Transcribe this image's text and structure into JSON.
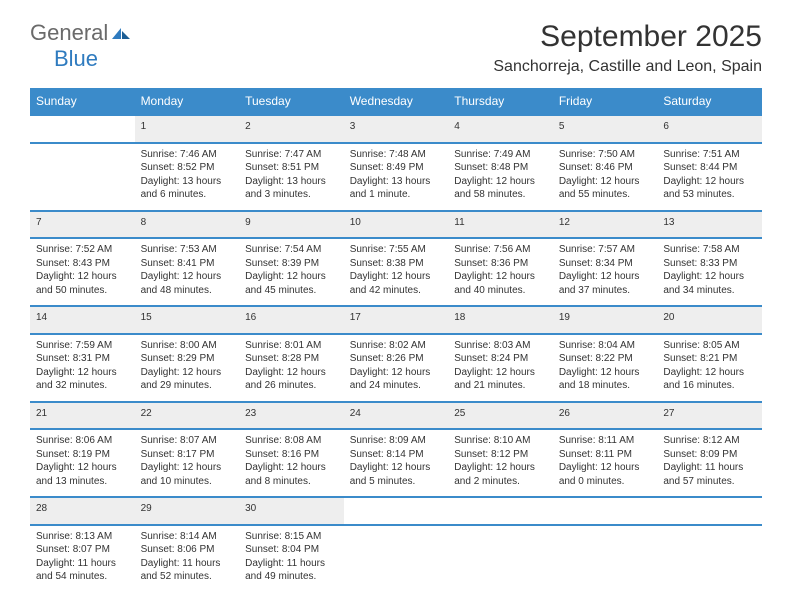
{
  "brand": {
    "word1": "General",
    "word2": "Blue"
  },
  "title": "September 2025",
  "location": "Sanchorreja, Castille and Leon, Spain",
  "header_bg": "#3b8bca",
  "header_fg": "#ffffff",
  "daynum_bg": "#eeeeee",
  "days": [
    "Sunday",
    "Monday",
    "Tuesday",
    "Wednesday",
    "Thursday",
    "Friday",
    "Saturday"
  ],
  "weeks": [
    [
      null,
      {
        "n": "1",
        "sunrise": "Sunrise: 7:46 AM",
        "sunset": "Sunset: 8:52 PM",
        "day": "Daylight: 13 hours and 6 minutes."
      },
      {
        "n": "2",
        "sunrise": "Sunrise: 7:47 AM",
        "sunset": "Sunset: 8:51 PM",
        "day": "Daylight: 13 hours and 3 minutes."
      },
      {
        "n": "3",
        "sunrise": "Sunrise: 7:48 AM",
        "sunset": "Sunset: 8:49 PM",
        "day": "Daylight: 13 hours and 1 minute."
      },
      {
        "n": "4",
        "sunrise": "Sunrise: 7:49 AM",
        "sunset": "Sunset: 8:48 PM",
        "day": "Daylight: 12 hours and 58 minutes."
      },
      {
        "n": "5",
        "sunrise": "Sunrise: 7:50 AM",
        "sunset": "Sunset: 8:46 PM",
        "day": "Daylight: 12 hours and 55 minutes."
      },
      {
        "n": "6",
        "sunrise": "Sunrise: 7:51 AM",
        "sunset": "Sunset: 8:44 PM",
        "day": "Daylight: 12 hours and 53 minutes."
      }
    ],
    [
      {
        "n": "7",
        "sunrise": "Sunrise: 7:52 AM",
        "sunset": "Sunset: 8:43 PM",
        "day": "Daylight: 12 hours and 50 minutes."
      },
      {
        "n": "8",
        "sunrise": "Sunrise: 7:53 AM",
        "sunset": "Sunset: 8:41 PM",
        "day": "Daylight: 12 hours and 48 minutes."
      },
      {
        "n": "9",
        "sunrise": "Sunrise: 7:54 AM",
        "sunset": "Sunset: 8:39 PM",
        "day": "Daylight: 12 hours and 45 minutes."
      },
      {
        "n": "10",
        "sunrise": "Sunrise: 7:55 AM",
        "sunset": "Sunset: 8:38 PM",
        "day": "Daylight: 12 hours and 42 minutes."
      },
      {
        "n": "11",
        "sunrise": "Sunrise: 7:56 AM",
        "sunset": "Sunset: 8:36 PM",
        "day": "Daylight: 12 hours and 40 minutes."
      },
      {
        "n": "12",
        "sunrise": "Sunrise: 7:57 AM",
        "sunset": "Sunset: 8:34 PM",
        "day": "Daylight: 12 hours and 37 minutes."
      },
      {
        "n": "13",
        "sunrise": "Sunrise: 7:58 AM",
        "sunset": "Sunset: 8:33 PM",
        "day": "Daylight: 12 hours and 34 minutes."
      }
    ],
    [
      {
        "n": "14",
        "sunrise": "Sunrise: 7:59 AM",
        "sunset": "Sunset: 8:31 PM",
        "day": "Daylight: 12 hours and 32 minutes."
      },
      {
        "n": "15",
        "sunrise": "Sunrise: 8:00 AM",
        "sunset": "Sunset: 8:29 PM",
        "day": "Daylight: 12 hours and 29 minutes."
      },
      {
        "n": "16",
        "sunrise": "Sunrise: 8:01 AM",
        "sunset": "Sunset: 8:28 PM",
        "day": "Daylight: 12 hours and 26 minutes."
      },
      {
        "n": "17",
        "sunrise": "Sunrise: 8:02 AM",
        "sunset": "Sunset: 8:26 PM",
        "day": "Daylight: 12 hours and 24 minutes."
      },
      {
        "n": "18",
        "sunrise": "Sunrise: 8:03 AM",
        "sunset": "Sunset: 8:24 PM",
        "day": "Daylight: 12 hours and 21 minutes."
      },
      {
        "n": "19",
        "sunrise": "Sunrise: 8:04 AM",
        "sunset": "Sunset: 8:22 PM",
        "day": "Daylight: 12 hours and 18 minutes."
      },
      {
        "n": "20",
        "sunrise": "Sunrise: 8:05 AM",
        "sunset": "Sunset: 8:21 PM",
        "day": "Daylight: 12 hours and 16 minutes."
      }
    ],
    [
      {
        "n": "21",
        "sunrise": "Sunrise: 8:06 AM",
        "sunset": "Sunset: 8:19 PM",
        "day": "Daylight: 12 hours and 13 minutes."
      },
      {
        "n": "22",
        "sunrise": "Sunrise: 8:07 AM",
        "sunset": "Sunset: 8:17 PM",
        "day": "Daylight: 12 hours and 10 minutes."
      },
      {
        "n": "23",
        "sunrise": "Sunrise: 8:08 AM",
        "sunset": "Sunset: 8:16 PM",
        "day": "Daylight: 12 hours and 8 minutes."
      },
      {
        "n": "24",
        "sunrise": "Sunrise: 8:09 AM",
        "sunset": "Sunset: 8:14 PM",
        "day": "Daylight: 12 hours and 5 minutes."
      },
      {
        "n": "25",
        "sunrise": "Sunrise: 8:10 AM",
        "sunset": "Sunset: 8:12 PM",
        "day": "Daylight: 12 hours and 2 minutes."
      },
      {
        "n": "26",
        "sunrise": "Sunrise: 8:11 AM",
        "sunset": "Sunset: 8:11 PM",
        "day": "Daylight: 12 hours and 0 minutes."
      },
      {
        "n": "27",
        "sunrise": "Sunrise: 8:12 AM",
        "sunset": "Sunset: 8:09 PM",
        "day": "Daylight: 11 hours and 57 minutes."
      }
    ],
    [
      {
        "n": "28",
        "sunrise": "Sunrise: 8:13 AM",
        "sunset": "Sunset: 8:07 PM",
        "day": "Daylight: 11 hours and 54 minutes."
      },
      {
        "n": "29",
        "sunrise": "Sunrise: 8:14 AM",
        "sunset": "Sunset: 8:06 PM",
        "day": "Daylight: 11 hours and 52 minutes."
      },
      {
        "n": "30",
        "sunrise": "Sunrise: 8:15 AM",
        "sunset": "Sunset: 8:04 PM",
        "day": "Daylight: 11 hours and 49 minutes."
      },
      null,
      null,
      null,
      null
    ]
  ]
}
